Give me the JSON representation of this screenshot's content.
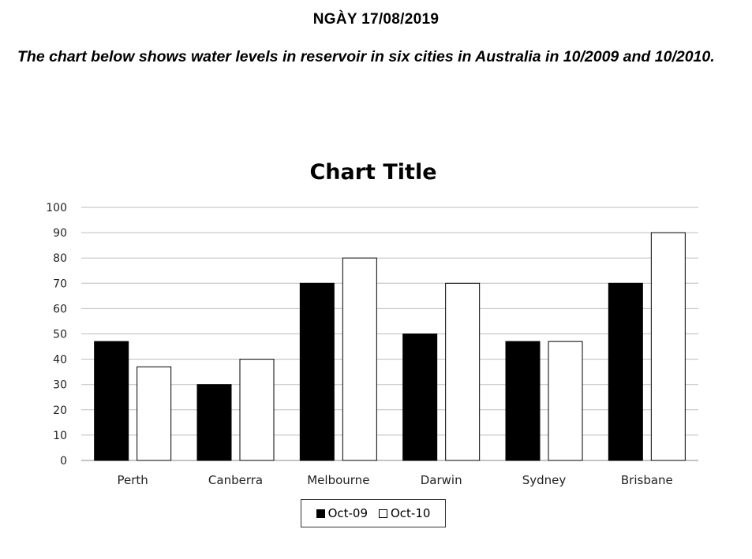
{
  "header": {
    "date": "NGÀY 17/08/2019",
    "prompt": "The chart below shows water levels in reservoir in six cities in Australia in 10/2009 and 10/2010."
  },
  "chart_data": {
    "type": "bar",
    "title": "Chart Title",
    "xlabel": "",
    "ylabel": "",
    "categories": [
      "Perth",
      "Canberra",
      "Melbourne",
      "Darwin",
      "Sydney",
      "Brisbane"
    ],
    "series": [
      {
        "name": "Oct-09",
        "color": "#000000",
        "values": [
          47,
          30,
          70,
          50,
          47,
          70
        ]
      },
      {
        "name": "Oct-10",
        "color": "#ffffff",
        "values": [
          37,
          40,
          80,
          70,
          47,
          90
        ]
      }
    ],
    "ylim": [
      0,
      100
    ],
    "yticks": [
      "0",
      "10",
      "20",
      "30",
      "40",
      "50",
      "60",
      "70",
      "80",
      "90",
      "100"
    ],
    "grid": true,
    "legend_position": "bottom"
  }
}
